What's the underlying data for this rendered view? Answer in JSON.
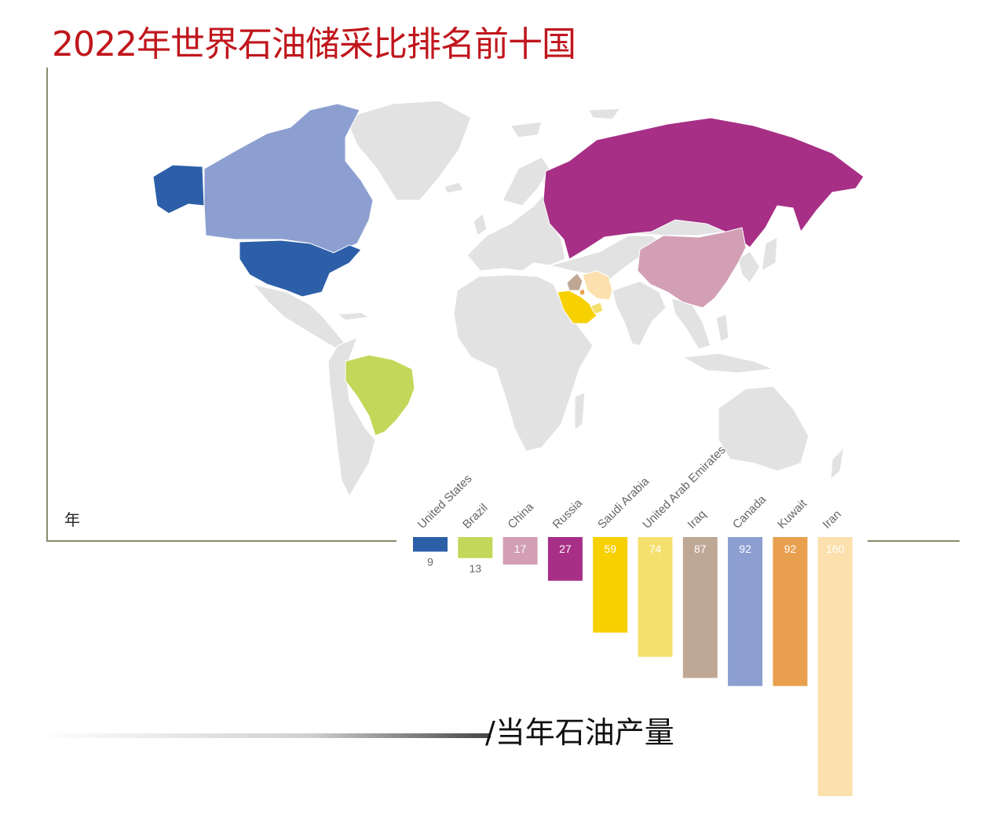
{
  "title": "2022年世界石油储采比排名前十国",
  "unit_label": "年",
  "caption": "/当年石油产量",
  "colors": {
    "title": "#c0161c",
    "land": "#e2e2e2",
    "axis": "#8a8a6e"
  },
  "map": {
    "highlighted": [
      {
        "country": "United States",
        "color": "#2c5fa8"
      },
      {
        "country": "Canada",
        "color": "#8c9fd0"
      },
      {
        "country": "Brazil",
        "color": "#c3d85a"
      },
      {
        "country": "China",
        "color": "#d29fb4"
      },
      {
        "country": "Russia",
        "color": "#a72f86"
      },
      {
        "country": "Saudi Arabia",
        "color": "#f7d000"
      },
      {
        "country": "United Arab Emirates",
        "color": "#f5e06e"
      },
      {
        "country": "Iraq",
        "color": "#bfa796"
      },
      {
        "country": "Kuwait",
        "color": "#e8a04e"
      },
      {
        "country": "Iran",
        "color": "#fce0ad"
      }
    ]
  },
  "chart_data": {
    "type": "bar",
    "title": "2022年世界石油储采比排名前十国",
    "categories": [
      "United States",
      "Brazil",
      "China",
      "Russia",
      "Saudi Arabia",
      "United Arab Emirates",
      "Iraq",
      "Canada",
      "Kuwait",
      "Iran"
    ],
    "values": [
      9,
      13,
      17,
      27,
      59,
      74,
      87,
      92,
      92,
      160
    ],
    "colors": [
      "#2c5fa8",
      "#c3d85a",
      "#d29fb4",
      "#a72f86",
      "#f7d000",
      "#f5e06e",
      "#bfa796",
      "#8c9fd0",
      "#e8a04e",
      "#fce0ad"
    ],
    "orientation": "downward",
    "xlabel": "",
    "ylabel": "年",
    "ylim": [
      0,
      160
    ]
  }
}
